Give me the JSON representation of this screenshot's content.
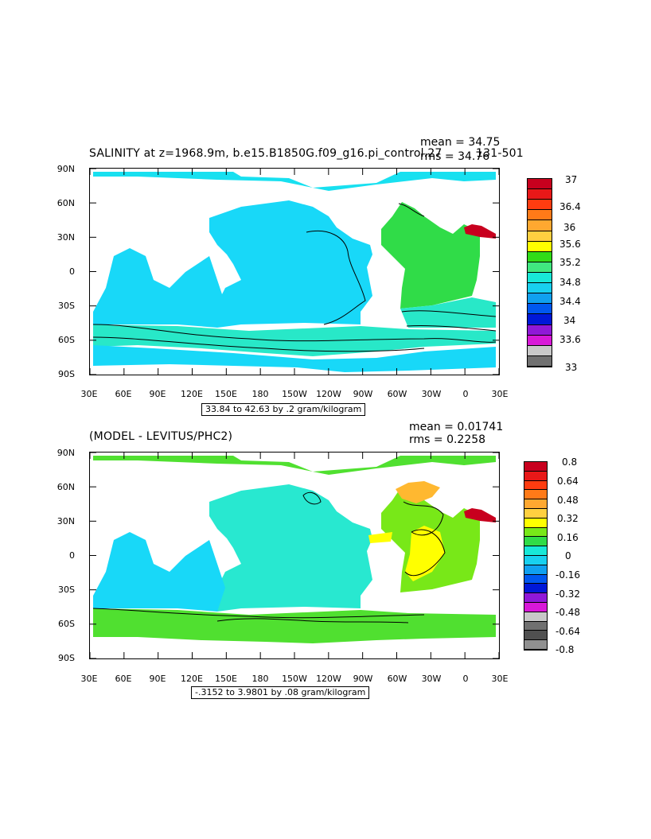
{
  "panels": [
    {
      "title": "SALINITY at z=1968.9m, b.e15.B1850G.f09_g16.pi_control.27",
      "title_overlap": "131-501",
      "stat_mean": "mean = 34.75",
      "stat_rms": "rms = 34.76",
      "range_label": "33.84 to 42.63 by .2 gram/kilogram",
      "lat_labels": [
        "90N",
        "60N",
        "30N",
        "0",
        "30S",
        "60S",
        "90S"
      ],
      "lon_labels": [
        "30E",
        "60E",
        "90E",
        "120E",
        "150E",
        "180",
        "150W",
        "120W",
        "90W",
        "60W",
        "30W",
        "0",
        "30E"
      ],
      "colorbar": {
        "labels": [
          "37",
          "36.4",
          "36",
          "35.6",
          "35.2",
          "34.8",
          "34.4",
          "34",
          "33.6",
          "33"
        ],
        "colors": [
          "#c8001e",
          "#e81818",
          "#ff3c10",
          "#ff7a18",
          "#ffa830",
          "#ffd040",
          "#ffff00",
          "#30dc18",
          "#40e880",
          "#18e8d8",
          "#18d0f0",
          "#10a0f0",
          "#0058f0",
          "#0018d8",
          "#9018d8",
          "#d818d8",
          "#c8c8c8",
          "#707070"
        ]
      },
      "fills": {
        "ocean": "#18e0f0",
        "northpacific": "#18d8f8",
        "atlantic": "#30dc48",
        "southern": "#28e8c8",
        "med": "#c8001e"
      }
    },
    {
      "title": "(MODEL - LEVITUS/PHC2)",
      "stat_mean": "mean = 0.01741",
      "stat_rms": "rms = 0.2258",
      "range_label": "-.3152 to 3.9801 by .08 gram/kilogram",
      "lat_labels": [
        "90N",
        "60N",
        "30N",
        "0",
        "30S",
        "60S",
        "90S"
      ],
      "lon_labels": [
        "30E",
        "60E",
        "90E",
        "120E",
        "150E",
        "180",
        "150W",
        "120W",
        "90W",
        "60W",
        "30W",
        "0",
        "30E"
      ],
      "colorbar": {
        "labels": [
          "0.8",
          "0.64",
          "0.48",
          "0.32",
          "0.16",
          "0",
          "-0.16",
          "-0.32",
          "-0.48",
          "-0.64",
          "-0.8"
        ],
        "colors": [
          "#c8001e",
          "#e81818",
          "#ff3c10",
          "#ff7a18",
          "#ffa830",
          "#ffd040",
          "#ffff00",
          "#78e818",
          "#30dc48",
          "#18e8d8",
          "#18d0f0",
          "#10a0f0",
          "#0058f0",
          "#0018d8",
          "#9018d8",
          "#d818d8",
          "#c8c8c8",
          "#707070",
          "#505050",
          "#909090"
        ]
      },
      "fills": {
        "ocean": "#28e8d0",
        "indian": "#18d8f8",
        "atlantic": "#78e818",
        "southern": "#50e030",
        "yellow": "#ffff00",
        "orange": "#ffb830",
        "med": "#c8001e"
      }
    }
  ]
}
